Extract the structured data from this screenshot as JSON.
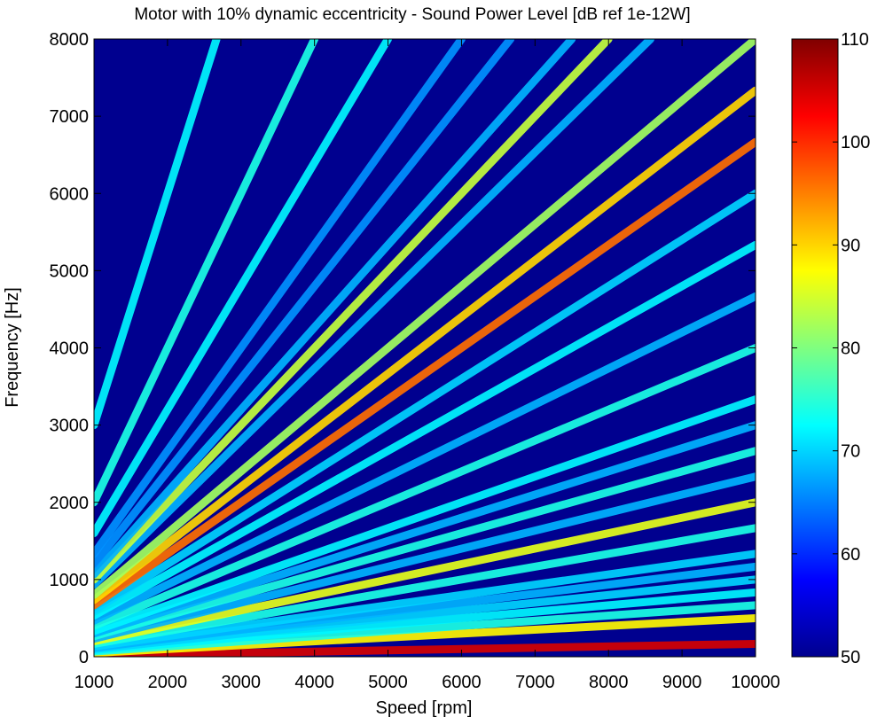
{
  "chart_data": {
    "type": "heatmap",
    "title": "Motor with 10% dynamic eccentricity - Sound Power Level [dB ref 1e-12W]",
    "xlabel": "Speed [rpm]",
    "ylabel": "Frequency [Hz]",
    "xlim": [
      1000,
      10000
    ],
    "ylim": [
      0,
      8000
    ],
    "x_ticks": [
      "1000",
      "2000",
      "3000",
      "4000",
      "5000",
      "6000",
      "7000",
      "8000",
      "9000",
      "10000"
    ],
    "y_ticks": [
      "0",
      "1000",
      "2000",
      "3000",
      "4000",
      "5000",
      "6000",
      "7000",
      "8000"
    ],
    "colorbar": {
      "colormap": "jet",
      "range": [
        50,
        110
      ],
      "ticks": [
        "50",
        "60",
        "70",
        "80",
        "90",
        "100",
        "110"
      ]
    },
    "background_level": 50,
    "harmonic_orders": [
      {
        "order": 1,
        "level_db": 105
      },
      {
        "order": 3,
        "level_db": 88
      },
      {
        "order": 4,
        "level_db": 74
      },
      {
        "order": 5,
        "level_db": 72
      },
      {
        "order": 6,
        "level_db": 70
      },
      {
        "order": 7,
        "level_db": 68
      },
      {
        "order": 8,
        "level_db": 70
      },
      {
        "order": 10,
        "level_db": 74
      },
      {
        "order": 12,
        "level_db": 86
      },
      {
        "order": 14,
        "level_db": 68
      },
      {
        "order": 16,
        "level_db": 74
      },
      {
        "order": 18,
        "level_db": 68
      },
      {
        "order": 20,
        "level_db": 72
      },
      {
        "order": 24,
        "level_db": 74
      },
      {
        "order": 28,
        "level_db": 68
      },
      {
        "order": 32,
        "level_db": 72
      },
      {
        "order": 36,
        "level_db": 70
      },
      {
        "order": 40,
        "level_db": 96
      },
      {
        "order": 44,
        "level_db": 90
      },
      {
        "order": 48,
        "level_db": 82
      },
      {
        "order": 56,
        "level_db": 68
      },
      {
        "order": 60,
        "level_db": 84
      },
      {
        "order": 64,
        "level_db": 68
      },
      {
        "order": 72,
        "level_db": 66
      },
      {
        "order": 80,
        "level_db": 66
      },
      {
        "order": 96,
        "level_db": 72
      },
      {
        "order": 120,
        "level_db": 74
      },
      {
        "order": 180,
        "level_db": 72
      }
    ]
  }
}
